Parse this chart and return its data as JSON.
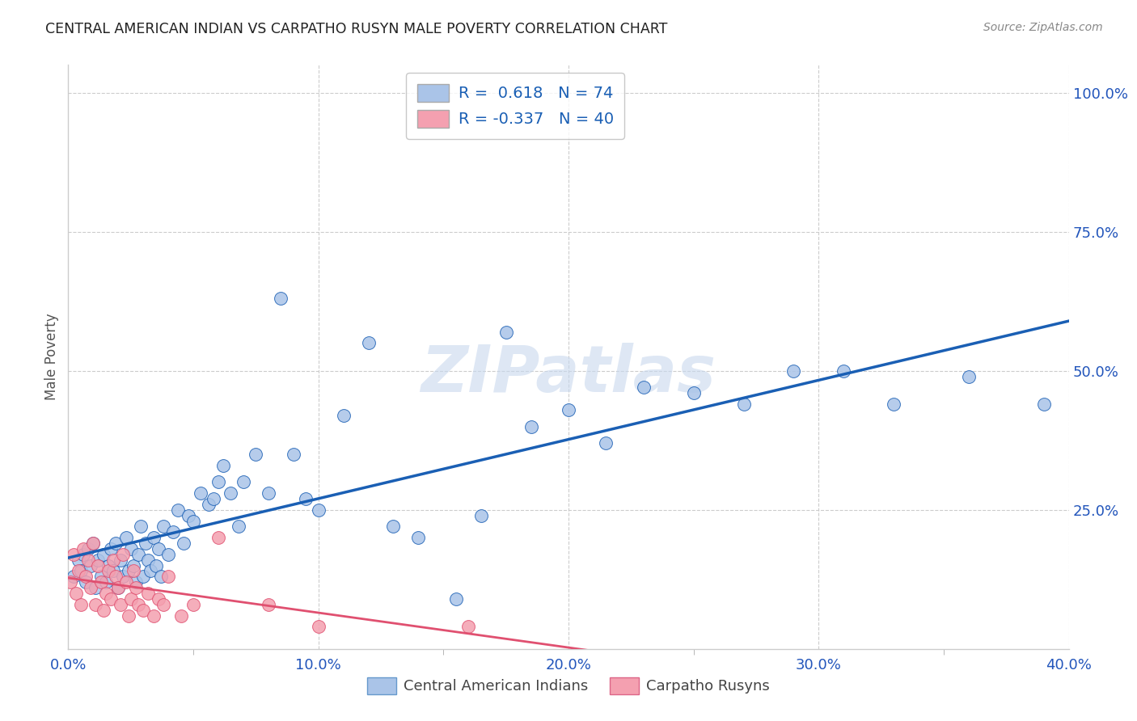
{
  "title": "CENTRAL AMERICAN INDIAN VS CARPATHO RUSYN MALE POVERTY CORRELATION CHART",
  "source": "Source: ZipAtlas.com",
  "ylabel_label": "Male Poverty",
  "xlim": [
    0.0,
    0.4
  ],
  "ylim": [
    0.0,
    1.05
  ],
  "xtick_labels": [
    "0.0%",
    "",
    "",
    "",
    "",
    "",
    "",
    "",
    "10.0%",
    "",
    "",
    "",
    "",
    "",
    "",
    "",
    "20.0%",
    "",
    "",
    "",
    "",
    "",
    "",
    "",
    "30.0%",
    "",
    "",
    "",
    "",
    "",
    "",
    "",
    "40.0%"
  ],
  "xtick_vals": [
    0.0,
    0.05,
    0.1,
    0.15,
    0.2,
    0.25,
    0.3,
    0.35,
    0.4
  ],
  "xtick_major_vals": [
    0.0,
    0.1,
    0.2,
    0.3,
    0.4
  ],
  "xtick_major_labels": [
    "0.0%",
    "10.0%",
    "20.0%",
    "30.0%",
    "40.0%"
  ],
  "ytick_vals": [
    0.25,
    0.5,
    0.75,
    1.0
  ],
  "ytick_labels": [
    "25.0%",
    "50.0%",
    "75.0%",
    "100.0%"
  ],
  "r_blue": 0.618,
  "n_blue": 74,
  "r_pink": -0.337,
  "n_pink": 40,
  "color_blue": "#aac4e8",
  "color_pink": "#f4a0b0",
  "line_blue": "#1a5fb4",
  "line_pink": "#e05070",
  "watermark": "ZIPatlas",
  "background_color": "#ffffff",
  "grid_color": "#cccccc",
  "blue_scatter_x": [
    0.002,
    0.004,
    0.005,
    0.006,
    0.007,
    0.008,
    0.009,
    0.01,
    0.011,
    0.012,
    0.013,
    0.014,
    0.015,
    0.016,
    0.017,
    0.018,
    0.019,
    0.02,
    0.021,
    0.022,
    0.023,
    0.024,
    0.025,
    0.026,
    0.027,
    0.028,
    0.029,
    0.03,
    0.031,
    0.032,
    0.033,
    0.034,
    0.035,
    0.036,
    0.037,
    0.038,
    0.04,
    0.042,
    0.044,
    0.046,
    0.048,
    0.05,
    0.053,
    0.056,
    0.058,
    0.06,
    0.062,
    0.065,
    0.068,
    0.07,
    0.075,
    0.08,
    0.085,
    0.09,
    0.095,
    0.1,
    0.11,
    0.12,
    0.13,
    0.14,
    0.155,
    0.165,
    0.175,
    0.185,
    0.2,
    0.215,
    0.23,
    0.25,
    0.27,
    0.29,
    0.31,
    0.33,
    0.36,
    0.39
  ],
  "blue_scatter_y": [
    0.13,
    0.16,
    0.14,
    0.17,
    0.12,
    0.18,
    0.15,
    0.19,
    0.11,
    0.16,
    0.13,
    0.17,
    0.12,
    0.15,
    0.18,
    0.14,
    0.19,
    0.11,
    0.16,
    0.13,
    0.2,
    0.14,
    0.18,
    0.15,
    0.12,
    0.17,
    0.22,
    0.13,
    0.19,
    0.16,
    0.14,
    0.2,
    0.15,
    0.18,
    0.13,
    0.22,
    0.17,
    0.21,
    0.25,
    0.19,
    0.24,
    0.23,
    0.28,
    0.26,
    0.27,
    0.3,
    0.33,
    0.28,
    0.22,
    0.3,
    0.35,
    0.28,
    0.63,
    0.35,
    0.27,
    0.25,
    0.42,
    0.55,
    0.22,
    0.2,
    0.09,
    0.24,
    0.57,
    0.4,
    0.43,
    0.37,
    0.47,
    0.46,
    0.44,
    0.5,
    0.5,
    0.44,
    0.49,
    0.44
  ],
  "pink_scatter_x": [
    0.001,
    0.002,
    0.003,
    0.004,
    0.005,
    0.006,
    0.007,
    0.008,
    0.009,
    0.01,
    0.011,
    0.012,
    0.013,
    0.014,
    0.015,
    0.016,
    0.017,
    0.018,
    0.019,
    0.02,
    0.021,
    0.022,
    0.023,
    0.024,
    0.025,
    0.026,
    0.027,
    0.028,
    0.03,
    0.032,
    0.034,
    0.036,
    0.038,
    0.04,
    0.045,
    0.05,
    0.06,
    0.08,
    0.1,
    0.16
  ],
  "pink_scatter_y": [
    0.12,
    0.17,
    0.1,
    0.14,
    0.08,
    0.18,
    0.13,
    0.16,
    0.11,
    0.19,
    0.08,
    0.15,
    0.12,
    0.07,
    0.1,
    0.14,
    0.09,
    0.16,
    0.13,
    0.11,
    0.08,
    0.17,
    0.12,
    0.06,
    0.09,
    0.14,
    0.11,
    0.08,
    0.07,
    0.1,
    0.06,
    0.09,
    0.08,
    0.13,
    0.06,
    0.08,
    0.2,
    0.08,
    0.04,
    0.04
  ]
}
